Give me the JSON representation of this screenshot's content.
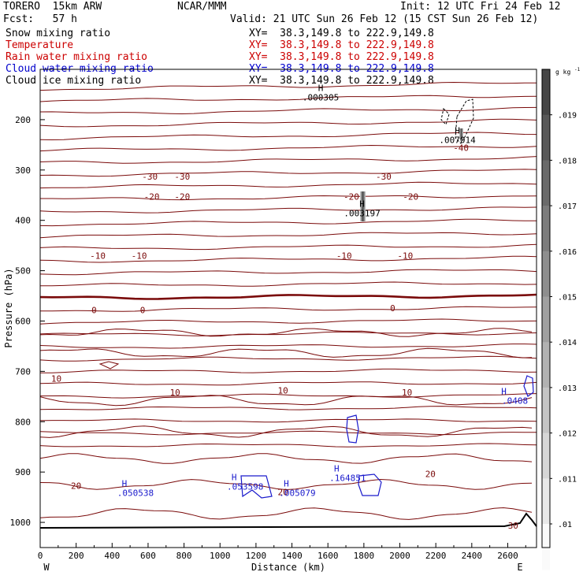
{
  "header": {
    "model": "TORERO  15km ARW",
    "org": "NCAR/MMM",
    "init": "Init: 12 UTC Fri 24 Feb 12",
    "fcst": "Fcst:   57 h",
    "valid": "Valid: 21 UTC Sun 26 Feb 12 (15 CST Sun 26 Feb 12)"
  },
  "fields": [
    {
      "name": "Snow mixing ratio",
      "xy": "XY=  38.3,149.8 to 222.9,149.8",
      "color": "#000000",
      "xycolor": "#000000"
    },
    {
      "name": "Temperature",
      "xy": "XY=  38.3,149.8 to 222.9,149.8",
      "color": "#cc0000",
      "xycolor": "#cc0000"
    },
    {
      "name": "Rain water mixing ratio",
      "xy": "XY=  38.3,149.8 to 222.9,149.8",
      "color": "#cc0000",
      "xycolor": "#cc0000"
    },
    {
      "name": "Cloud water mixing ratio",
      "xy": "XY=  38.3,149.8 to 222.9,149.8",
      "color": "#0000cc",
      "xycolor": "#0000cc"
    },
    {
      "name": "Cloud ice mixing ratio",
      "xy": "XY=  38.3,149.8 to 222.9,149.8",
      "color": "#000000",
      "xycolor": "#000000"
    }
  ],
  "chart_data": {
    "type": "contour",
    "xlabel": "Distance (km)",
    "ylabel": "Pressure (hPa)",
    "xlim": [
      0,
      2760
    ],
    "ylim": [
      1050,
      100
    ],
    "xticks": [
      0,
      200,
      400,
      600,
      800,
      1000,
      1200,
      1400,
      1600,
      1800,
      2000,
      2200,
      2400,
      2600
    ],
    "yticks": [
      200,
      300,
      400,
      500,
      600,
      700,
      800,
      900,
      1000
    ],
    "x_end_labels": {
      "left": "W",
      "right": "E"
    },
    "colorbar": {
      "unit": "g kg",
      "unit_exp": "-1",
      "ticks": [
        ".019",
        ".018",
        ".017",
        ".016",
        ".015",
        ".014",
        ".013",
        ".012",
        ".011",
        ".01"
      ]
    },
    "temperature_labels": [
      {
        "text": "-30",
        "x": 610,
        "p": 313
      },
      {
        "text": "-30",
        "x": 790,
        "p": 313
      },
      {
        "text": "-30",
        "x": 1910,
        "p": 313
      },
      {
        "text": "-20",
        "x": 620,
        "p": 353
      },
      {
        "text": "-20",
        "x": 790,
        "p": 353
      },
      {
        "text": "-20",
        "x": 1730,
        "p": 353
      },
      {
        "text": "-20",
        "x": 2060,
        "p": 353
      },
      {
        "text": "-10",
        "x": 320,
        "p": 470
      },
      {
        "text": "-10",
        "x": 550,
        "p": 470
      },
      {
        "text": "-10",
        "x": 1690,
        "p": 470
      },
      {
        "text": "-10",
        "x": 2030,
        "p": 470
      },
      {
        "text": "0",
        "x": 300,
        "p": 578
      },
      {
        "text": "0",
        "x": 570,
        "p": 578
      },
      {
        "text": "0",
        "x": 1960,
        "p": 574
      },
      {
        "text": "10",
        "x": 90,
        "p": 714
      },
      {
        "text": "10",
        "x": 750,
        "p": 742
      },
      {
        "text": "10",
        "x": 1350,
        "p": 738
      },
      {
        "text": "10",
        "x": 2040,
        "p": 742
      },
      {
        "text": "20",
        "x": 200,
        "p": 927
      },
      {
        "text": "20",
        "x": 1350,
        "p": 940
      },
      {
        "text": "20",
        "x": 2170,
        "p": 904
      },
      {
        "text": "-40",
        "x": 2340,
        "p": 256
      },
      {
        "text": "30",
        "x": 2630,
        "p": 1006
      }
    ],
    "ice_maxima": [
      {
        "label": ".000305",
        "x": 1560,
        "p": 159
      },
      {
        "label": ".007014",
        "x": 2320,
        "p": 243
      },
      {
        "label": ".003197",
        "x": 1790,
        "p": 389
      }
    ],
    "cloud_water_maxima": [
      {
        "label": ".050538",
        "x": 530,
        "p": 944
      },
      {
        "label": ".053598",
        "x": 1140,
        "p": 932
      },
      {
        "label": ".005079",
        "x": 1430,
        "p": 944
      },
      {
        "label": ".164851",
        "x": 1710,
        "p": 915
      },
      {
        "label": ".0408",
        "x": 2640,
        "p": 761
      }
    ]
  }
}
